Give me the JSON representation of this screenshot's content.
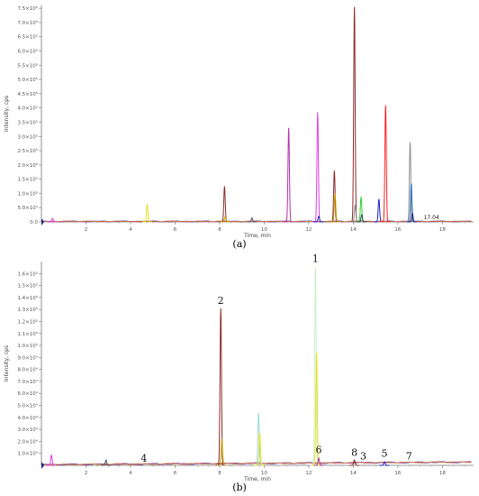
{
  "chart_data": [
    {
      "type": "line",
      "panel_label": "(a)",
      "xlabel": "Time, min",
      "ylabel": "Intensity, cps",
      "xlim": [
        0,
        19.4
      ],
      "ylim": [
        0,
        760000.0
      ],
      "x_ticks": [
        "2",
        "4",
        "6",
        "8",
        "10",
        "12",
        "14",
        "16",
        "18"
      ],
      "y_ticks": [
        "0.0",
        "5.0×10⁴",
        "1.0×10⁵",
        "1.5×10⁵",
        "2.0×10⁵",
        "2.5×10⁵",
        "3.0×10⁵",
        "3.5×10⁵",
        "4.0×10⁵",
        "4.5×10⁵",
        "5.0×10⁵",
        "5.5×10⁵",
        "6.0×10⁵",
        "6.5×10⁵",
        "7.0×10⁵",
        "7.5×10⁵"
      ],
      "annotations": [
        {
          "text": "17.04",
          "x": 17.04,
          "y": 0
        }
      ],
      "peaks": [
        {
          "t": 0.5,
          "h": 12000,
          "color": "#e040e0"
        },
        {
          "t": 4.75,
          "h": 62000,
          "color": "#e8e020"
        },
        {
          "t": 8.22,
          "h": 125000,
          "color": "#8b2a2a"
        },
        {
          "t": 8.25,
          "h": 18000,
          "color": "#c8a000"
        },
        {
          "t": 9.45,
          "h": 14000,
          "color": "#505060"
        },
        {
          "t": 11.1,
          "h": 330000,
          "color": "#b030b0"
        },
        {
          "t": 12.4,
          "h": 385000,
          "color": "#e040e0"
        },
        {
          "t": 12.45,
          "h": 20000,
          "color": "#2020c0"
        },
        {
          "t": 13.15,
          "h": 180000,
          "color": "#8b2a2a"
        },
        {
          "t": 13.18,
          "h": 100000,
          "color": "#c8a000"
        },
        {
          "t": 14.05,
          "h": 755000,
          "color": "#8b2a2a"
        },
        {
          "t": 14.08,
          "h": 60000,
          "color": "#909090"
        },
        {
          "t": 14.35,
          "h": 88000,
          "color": "#30d030"
        },
        {
          "t": 14.38,
          "h": 25000,
          "color": "#205050"
        },
        {
          "t": 15.15,
          "h": 80000,
          "color": "#2020c0"
        },
        {
          "t": 15.45,
          "h": 410000,
          "color": "#ff2020"
        },
        {
          "t": 16.55,
          "h": 280000,
          "color": "#909090"
        },
        {
          "t": 16.6,
          "h": 135000,
          "color": "#2070c0"
        },
        {
          "t": 16.65,
          "h": 30000,
          "color": "#202080"
        }
      ]
    },
    {
      "type": "line",
      "panel_label": "(b)",
      "xlabel": "Time, min",
      "ylabel": "Intensity, cps",
      "xlim": [
        0,
        19.4
      ],
      "ylim": [
        0,
        170000.0
      ],
      "x_ticks": [
        "2",
        "4",
        "6",
        "8",
        "10",
        "12",
        "14",
        "16",
        "18"
      ],
      "y_ticks": [
        "1.0×10⁴",
        "2.0×10⁴",
        "3.0×10⁴",
        "4.0×10⁴",
        "5.0×10⁴",
        "6.0×10⁴",
        "7.0×10⁴",
        "8.0×10⁴",
        "9.0×10⁴",
        "1.0×10⁵",
        "1.1×10⁵",
        "1.2×10⁵",
        "1.3×10⁵",
        "1.4×10⁵",
        "1.5×10⁵",
        "1.6×10⁵"
      ],
      "peak_labels": [
        {
          "text": "1",
          "x": 12.3,
          "y": 168000.0
        },
        {
          "text": "2",
          "x": 8.05,
          "y": 133000.0
        },
        {
          "text": "4",
          "x": 4.6,
          "y": 1500
        },
        {
          "text": "6",
          "x": 12.45,
          "y": 8500
        },
        {
          "text": "8",
          "x": 14.05,
          "y": 6500
        },
        {
          "text": "3",
          "x": 14.45,
          "y": 3500
        },
        {
          "text": "5",
          "x": 15.4,
          "y": 5500
        },
        {
          "text": "7",
          "x": 16.5,
          "y": 3500
        }
      ],
      "peaks": [
        {
          "t": 0.45,
          "h": 8500,
          "color": "#e040e0"
        },
        {
          "t": 2.9,
          "h": 4500,
          "color": "#505060"
        },
        {
          "t": 8.05,
          "h": 131000,
          "color": "#8b2a2a"
        },
        {
          "t": 8.1,
          "h": 22000,
          "color": "#c8a000"
        },
        {
          "t": 9.75,
          "h": 44000,
          "color": "#a0d8d8"
        },
        {
          "t": 9.8,
          "h": 27000,
          "color": "#e8e020"
        },
        {
          "t": 12.3,
          "h": 165000,
          "color": "#c8f0c8"
        },
        {
          "t": 12.35,
          "h": 94000,
          "color": "#e8e020"
        },
        {
          "t": 12.45,
          "h": 6000,
          "color": "#b030b0"
        },
        {
          "t": 14.05,
          "h": 4500,
          "color": "#8b2a2a"
        },
        {
          "t": 15.4,
          "h": 3000,
          "color": "#2020c0"
        }
      ]
    }
  ],
  "palette": {
    "axis": "#777777",
    "baseline": [
      "#2020c0",
      "#8b2a2a",
      "#e040e0",
      "#c8a000"
    ]
  }
}
